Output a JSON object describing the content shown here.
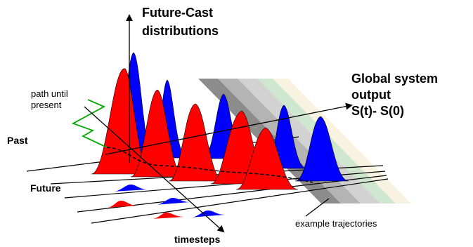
{
  "labels": {
    "future_cast": [
      "Future-Cast",
      "distributions"
    ],
    "global_output": [
      "Global system",
      "output",
      "S(t)- S(0)"
    ],
    "path_until_present": [
      "path until",
      "present"
    ],
    "past": "Past",
    "future": "Future",
    "timesteps": "timesteps",
    "example_trajectories": "example trajectories"
  },
  "colors": {
    "red": "#ff0000",
    "blue": "#0000ff",
    "path_green": "#00aa00",
    "band_dark": "#8c8c8c",
    "band_mid": "#b4b4b4",
    "band_light": "#d2d2d2",
    "band_green": "#cfe6cf",
    "band_cream": "#f8f3e0"
  }
}
